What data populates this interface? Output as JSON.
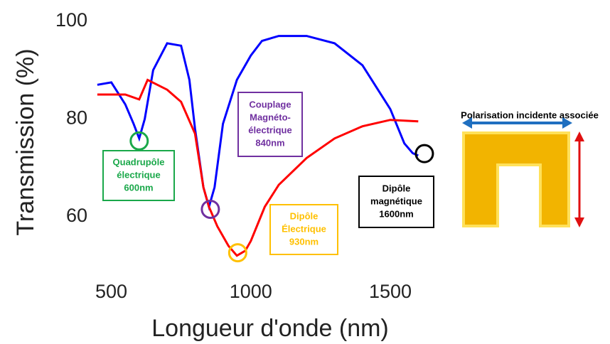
{
  "chart_data": {
    "type": "line",
    "xlabel": "Longueur d'onde (nm)",
    "ylabel": "Transmission (%)",
    "xlim": [
      440,
      1640
    ],
    "ylim": [
      50.5,
      100
    ],
    "xticks": [
      500,
      1000,
      1500
    ],
    "yticks": [
      60,
      80,
      100
    ],
    "series": [
      {
        "color": "#0000ff",
        "x": [
          450,
          500,
          550,
          580,
          600,
          620,
          650,
          700,
          750,
          780,
          800,
          830,
          850,
          870,
          900,
          950,
          1000,
          1040,
          1100,
          1200,
          1300,
          1400,
          1500,
          1550,
          1580,
          1600
        ],
        "values": [
          87,
          87.5,
          83,
          79,
          76,
          80,
          90,
          95.5,
          95,
          88,
          78,
          66,
          62,
          66,
          79,
          88,
          93,
          96,
          97,
          97,
          95.5,
          91,
          82,
          75,
          73,
          72.5
        ]
      },
      {
        "color": "#ff0000",
        "x": [
          450,
          500,
          550,
          600,
          630,
          700,
          750,
          800,
          830,
          850,
          880,
          920,
          950,
          980,
          1000,
          1050,
          1100,
          1200,
          1300,
          1400,
          1500,
          1600
        ],
        "values": [
          85,
          85,
          85,
          84,
          88,
          86,
          83.5,
          77,
          66,
          62,
          58,
          54,
          52,
          53,
          55,
          62,
          66.5,
          72,
          76,
          78.5,
          79.8,
          79.5
        ]
      }
    ],
    "annotations": [
      {
        "lines": [
          "Quadrupôle",
          "électrique",
          "600nm"
        ],
        "color": "#1aa84a",
        "x": 600,
        "y": 75.5
      },
      {
        "lines": [
          "Couplage",
          "Magnéto-",
          "électrique",
          "840nm"
        ],
        "color": "#7030a0",
        "x": 855,
        "y": 61.5
      },
      {
        "lines": [
          "Dipôle",
          "Électrique",
          "930nm"
        ],
        "color": "#ffc000",
        "x": 953,
        "y": 52.6
      },
      {
        "lines": [
          "Dipôle",
          "magnétique",
          "1600nm"
        ],
        "color": "#000000",
        "x": 1622,
        "y": 72.9
      }
    ],
    "side_title": "Polarisation incidente associée"
  }
}
